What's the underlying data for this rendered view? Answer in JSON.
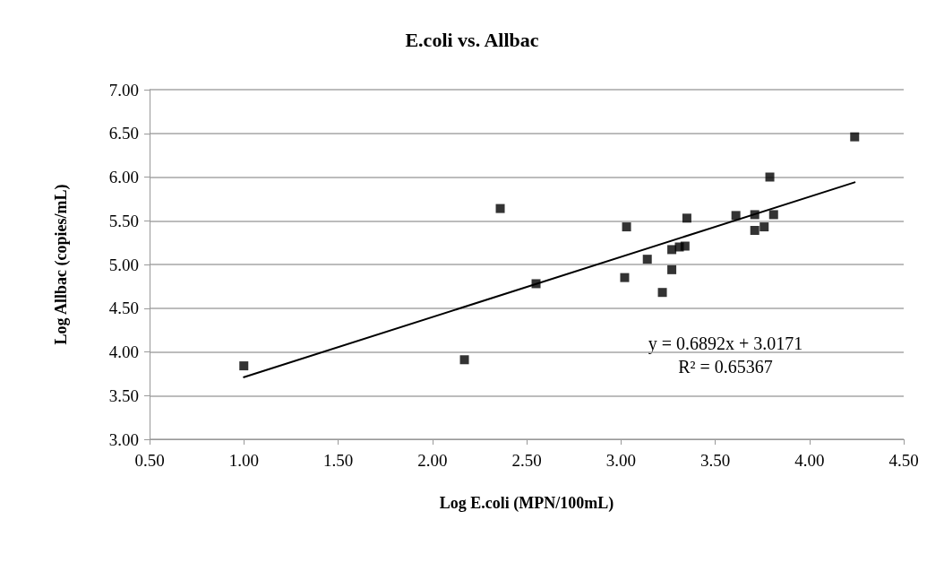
{
  "chart_data": {
    "type": "scatter",
    "title": "E.coli vs. Allbac",
    "xlabel": "Log E.coli (MPN/100mL)",
    "ylabel": "Log Allbac (copies/mL)",
    "series": [
      {
        "color": "#000000",
        "marker": "square",
        "x": [
          1.0,
          2.17,
          2.36,
          2.55,
          3.03,
          3.02,
          3.14,
          3.22,
          3.27,
          3.27,
          3.31,
          3.34,
          3.35,
          3.61,
          3.71,
          3.71,
          3.76,
          3.79,
          3.81,
          4.24
        ],
        "values": [
          3.84,
          3.91,
          5.64,
          4.78,
          5.43,
          4.85,
          5.06,
          4.68,
          5.17,
          4.94,
          5.2,
          5.21,
          5.53,
          5.56,
          5.57,
          5.39,
          5.43,
          6.0,
          5.57,
          6.46
        ]
      },
      {
        "type": "line",
        "color": "#000000",
        "marker": "none",
        "line_style": "solid",
        "x": [
          1.0,
          4.24
        ],
        "values": [
          3.71,
          5.94
        ]
      }
    ],
    "annotations": [
      "y = 0.6892x + 3.0171",
      "R² = 0.65367"
    ],
    "xlim": [
      0.5,
      4.5
    ],
    "xticks": [
      {
        "value": 0.5,
        "label": "0.50"
      },
      {
        "value": 1,
        "label": "1.00"
      },
      {
        "value": 1.5,
        "label": "1.50"
      },
      {
        "value": 2,
        "label": "2.00"
      },
      {
        "value": 2.5,
        "label": "2.50"
      },
      {
        "value": 3,
        "label": "3.00"
      },
      {
        "value": 3.5,
        "label": "3.50"
      },
      {
        "value": 4,
        "label": "4.00"
      },
      {
        "value": 4.5,
        "label": "4.50"
      }
    ],
    "ylim": [
      3,
      7
    ],
    "yticks": [
      {
        "value": 3,
        "label": "3.00"
      },
      {
        "value": 3.5,
        "label": "3.50"
      },
      {
        "value": 4,
        "label": "4.00"
      },
      {
        "value": 4.5,
        "label": "4.50"
      },
      {
        "value": 5,
        "label": "5.00"
      },
      {
        "value": 5.5,
        "label": "5.50"
      },
      {
        "value": 6,
        "label": "6.00"
      },
      {
        "value": 6.5,
        "label": "6.50"
      },
      {
        "value": 7,
        "label": "7.00"
      }
    ],
    "grid": "y",
    "legend": false
  }
}
